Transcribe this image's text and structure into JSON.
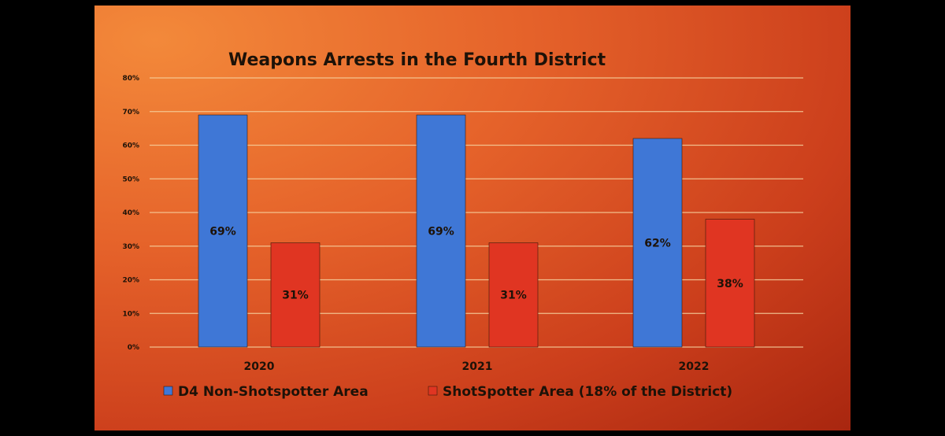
{
  "chart_data": {
    "type": "bar",
    "title": "Weapons Arrests in the Fourth District",
    "categories": [
      "2020",
      "2021",
      "2022"
    ],
    "series": [
      {
        "name": "D4 Non-Shotspotter Area",
        "values": [
          69,
          69,
          62
        ],
        "labels": [
          "69%",
          "69%",
          "62%"
        ],
        "color": "#3f77d6"
      },
      {
        "name": "ShotSpotter Area (18% of the District)",
        "values": [
          31,
          31,
          38
        ],
        "labels": [
          "31%",
          "31%",
          "38%"
        ],
        "color": "#e03522"
      }
    ],
    "ylim": [
      0,
      80
    ],
    "yticks": [
      0,
      10,
      20,
      30,
      40,
      50,
      60,
      70,
      80
    ],
    "ytick_labels": [
      "0%",
      "10%",
      "20%",
      "30%",
      "40%",
      "50%",
      "60%",
      "70%",
      "80%"
    ],
    "xlabel": "",
    "ylabel": "",
    "grid": true,
    "legend": "bottom"
  }
}
